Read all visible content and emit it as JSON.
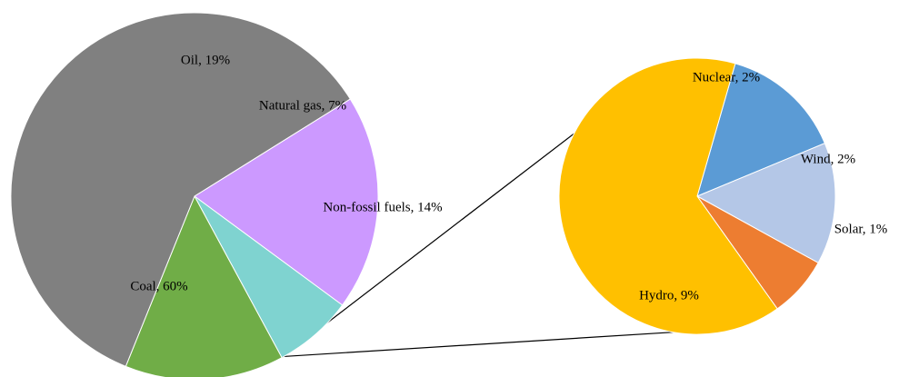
{
  "chart_data": [
    {
      "type": "pie",
      "title": "",
      "slices": [
        {
          "label": "Oil, 19%",
          "category": "Oil",
          "value": 19,
          "color": "#cc99ff"
        },
        {
          "label": "Natural gas, 7%",
          "category": "Natural gas",
          "value": 7,
          "color": "#7fd3d0"
        },
        {
          "label": "Non-fossil fuels, 14%",
          "category": "Non-fossil fuels",
          "value": 14,
          "color": "#70ad47"
        },
        {
          "label": "Coal, 60%",
          "category": "Coal",
          "value": 60,
          "color": "#808080"
        }
      ],
      "legend": "none"
    },
    {
      "type": "pie",
      "title": "",
      "expands": "Non-fossil fuels",
      "slices": [
        {
          "label": "Nuclear, 2%",
          "category": "Nuclear",
          "value": 2,
          "color": "#5b9bd5"
        },
        {
          "label": "Wind, 2%",
          "category": "Wind",
          "value": 2,
          "color": "#b4c7e7"
        },
        {
          "label": "Solar, 1%",
          "category": "Solar",
          "value": 1,
          "color": "#ed7d31"
        },
        {
          "label": "Hydro, 9%",
          "category": "Hydro",
          "value": 9,
          "color": "#ffc000"
        }
      ],
      "legend": "none"
    }
  ]
}
